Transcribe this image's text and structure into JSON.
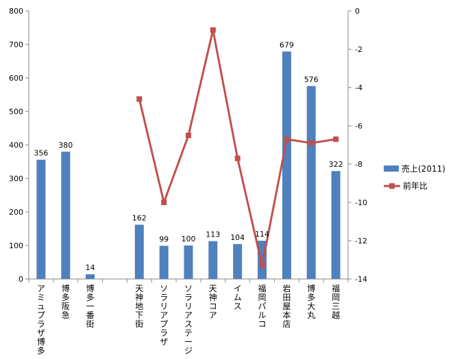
{
  "chart_data": {
    "type": "bar",
    "categories": [
      "アミュプラザ博多",
      "博多阪急",
      "博多一番街",
      "",
      "天神地下街",
      "ソラリアプラザ",
      "ソラリアステージ",
      "天神コア",
      "イムス",
      "福岡パルコ",
      "岩田屋本店",
      "博多大丸",
      "福岡三越"
    ],
    "series": [
      {
        "name": "売上(2011)",
        "type": "bar",
        "axis": "left",
        "color": "#4F81BD",
        "values": [
          356,
          380,
          14,
          null,
          162,
          99,
          100,
          113,
          104,
          114,
          679,
          576,
          322
        ],
        "labels": [
          "356",
          "380",
          "14",
          "",
          "162",
          "99",
          "100",
          "113",
          "104",
          "114",
          "679",
          "576",
          "322"
        ]
      },
      {
        "name": "前年比",
        "type": "line",
        "axis": "right",
        "color": "#C0504D",
        "values": [
          null,
          null,
          null,
          null,
          -4.6,
          -10.0,
          -6.5,
          -1.0,
          -7.7,
          -13.3,
          -6.7,
          -6.9,
          -6.7
        ]
      }
    ],
    "y_left": {
      "min": 0,
      "max": 800,
      "ticks": [
        "0",
        "100",
        "200",
        "300",
        "400",
        "500",
        "600",
        "700",
        "800"
      ]
    },
    "y_right": {
      "min": -14,
      "max": 0,
      "ticks": [
        "0",
        "-2",
        "-4",
        "-6",
        "-8",
        "-10",
        "-12",
        "-14"
      ]
    },
    "grid": false,
    "legend_position": "right"
  }
}
